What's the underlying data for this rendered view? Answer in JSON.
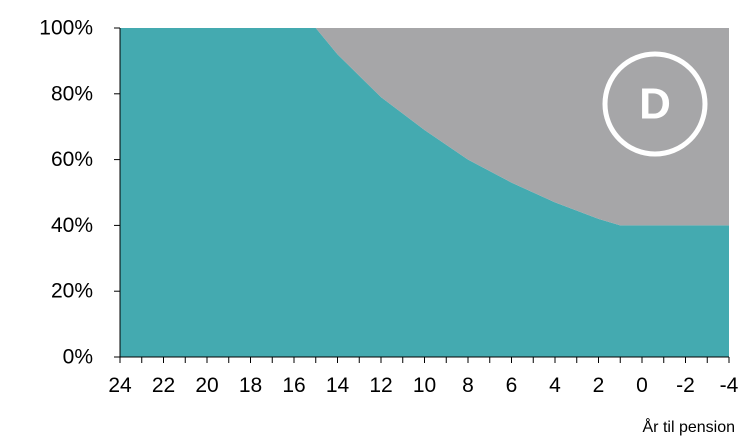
{
  "chart_data": {
    "type": "area",
    "xlabel": "År til pension",
    "x_ticks": [
      "24",
      "22",
      "20",
      "18",
      "16",
      "14",
      "12",
      "10",
      "8",
      "6",
      "4",
      "2",
      "0",
      "-2",
      "-4"
    ],
    "y_ticks": [
      "0%",
      "20%",
      "40%",
      "60%",
      "80%",
      "100%"
    ],
    "xlim": [
      24,
      -4
    ],
    "ylim": [
      0,
      100
    ],
    "grid": false,
    "badge": "D",
    "series": [
      {
        "color": "#44aab0",
        "x": [
          24,
          15,
          14,
          12,
          10,
          8,
          6,
          4,
          2,
          1,
          0,
          -4
        ],
        "values": [
          100,
          100,
          92,
          79,
          69,
          60,
          53,
          47,
          42,
          40,
          40,
          40
        ]
      },
      {
        "color": "#a6a6a8",
        "x": [
          24,
          15,
          14,
          12,
          10,
          8,
          6,
          4,
          2,
          1,
          0,
          -4
        ],
        "values": [
          0,
          0,
          8,
          21,
          31,
          40,
          47,
          53,
          58,
          60,
          60,
          60
        ]
      }
    ]
  }
}
